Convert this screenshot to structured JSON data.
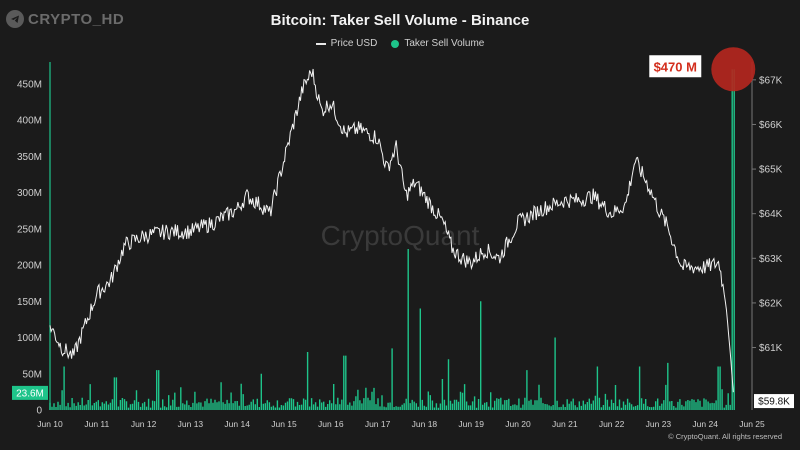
{
  "watermark": "CRYPTO_HD",
  "copyright": "© CryptoQuant. All rights reserved",
  "colors": {
    "background": "#1b1b1b",
    "price": "#f2f2f2",
    "volume": "#1ec48a",
    "marker": "#b3261e"
  },
  "chart_data": {
    "type": "line",
    "title": "Bitcoin: Taker Sell Volume - Binance",
    "legend_position": "top-center",
    "grid": false,
    "x_ticks": [
      "Jun 10",
      "Jun 11",
      "Jun 12",
      "Jun 13",
      "Jun 14",
      "Jun 15",
      "Jun 16",
      "Jun 17",
      "Jun 18",
      "Jun 19",
      "Jun 20",
      "Jun 21",
      "Jun 22",
      "Jun 23",
      "Jun 24",
      "Jun 25"
    ],
    "left_axis": {
      "ticks": [
        "0",
        "50M",
        "100M",
        "150M",
        "200M",
        "250M",
        "300M",
        "350M",
        "400M",
        "450M"
      ],
      "ylim": [
        0,
        480
      ]
    },
    "right_axis": {
      "ticks": [
        "$61K",
        "$62K",
        "$63K",
        "$64K",
        "$65K",
        "$66K",
        "$67K"
      ],
      "ylim": [
        59.6,
        67.4
      ]
    },
    "series": [
      {
        "name": "Price USD",
        "axis": "right",
        "x": [
          10.0,
          10.25,
          10.5,
          11.0,
          11.3,
          11.6,
          12.0,
          12.5,
          13.0,
          13.5,
          14.0,
          14.2,
          14.5,
          14.7,
          15.0,
          15.2,
          15.4,
          15.6,
          15.8,
          16.0,
          16.3,
          16.6,
          17.0,
          17.2,
          17.4,
          17.6,
          17.8,
          18.0,
          18.2,
          18.4,
          18.6,
          18.8,
          19.0,
          19.3,
          19.6,
          20.0,
          20.5,
          21.0,
          21.3,
          21.6,
          22.0,
          22.3,
          22.5,
          22.8,
          23.0,
          23.2,
          23.5,
          23.8,
          24.0,
          24.3,
          24.45,
          24.55,
          24.6
        ],
        "values": [
          61.5,
          61.0,
          60.8,
          62.2,
          62.5,
          63.3,
          63.5,
          63.6,
          63.6,
          63.8,
          64.1,
          64.4,
          64.2,
          64.0,
          65.2,
          66.0,
          66.8,
          67.2,
          66.3,
          66.5,
          65.8,
          65.9,
          65.7,
          65.0,
          65.5,
          64.4,
          64.7,
          64.4,
          64.1,
          63.8,
          63.2,
          63.0,
          62.9,
          63.2,
          63.0,
          63.8,
          64.1,
          64.3,
          64.3,
          64.4,
          64.0,
          64.2,
          65.2,
          64.6,
          64.1,
          63.7,
          62.8,
          62.8,
          62.8,
          62.9,
          61.9,
          60.7,
          60.0
        ]
      },
      {
        "name": "Taker Sell Volume",
        "axis": "left",
        "peaks": [
          {
            "x": 10.3,
            "value": 60
          },
          {
            "x": 11.4,
            "value": 45
          },
          {
            "x": 12.3,
            "value": 55
          },
          {
            "x": 14.5,
            "value": 50
          },
          {
            "x": 15.5,
            "value": 80
          },
          {
            "x": 16.3,
            "value": 75
          },
          {
            "x": 17.3,
            "value": 85
          },
          {
            "x": 17.65,
            "value": 222
          },
          {
            "x": 17.9,
            "value": 140
          },
          {
            "x": 18.5,
            "value": 70
          },
          {
            "x": 19.2,
            "value": 150
          },
          {
            "x": 20.2,
            "value": 55
          },
          {
            "x": 20.8,
            "value": 100
          },
          {
            "x": 21.7,
            "value": 60
          },
          {
            "x": 22.6,
            "value": 60
          },
          {
            "x": 23.2,
            "value": 65
          },
          {
            "x": 24.3,
            "value": 60
          },
          {
            "x": 24.6,
            "value": 470
          }
        ]
      }
    ],
    "annotations": {
      "peak_label": "$470 M",
      "current_volume": "23.6M",
      "current_price": "$59.8K"
    },
    "center_watermark": "CryptoQuant"
  }
}
